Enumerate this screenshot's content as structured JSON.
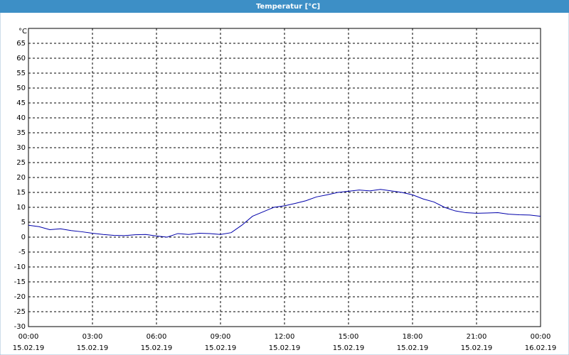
{
  "chart_data": {
    "type": "line",
    "title": "Temperatur [°C]",
    "y_label": "°C",
    "x": [
      0,
      0.5,
      1,
      1.5,
      2,
      2.5,
      3,
      3.5,
      4,
      4.5,
      5,
      5.5,
      6,
      6.5,
      7,
      7.5,
      8,
      8.5,
      9,
      9.5,
      10,
      10.5,
      11,
      11.5,
      12,
      12.5,
      13,
      13.5,
      14,
      14.5,
      15,
      15.5,
      16,
      16.5,
      17,
      17.5,
      18,
      18.5,
      19,
      19.5,
      20,
      20.5,
      21,
      21.5,
      22,
      22.5,
      23,
      23.5,
      24
    ],
    "series": [
      {
        "color": "#0000aa",
        "values": [
          4,
          3.5,
          2.5,
          2.8,
          2.2,
          1.8,
          1.3,
          0.9,
          0.6,
          0.5,
          0.8,
          0.9,
          0.4,
          0,
          1.2,
          0.9,
          1.3,
          1.2,
          0.9,
          1.5,
          4,
          7,
          8.5,
          10,
          10.5,
          11.3,
          12.2,
          13.5,
          14.2,
          15,
          15.4,
          15.8,
          15.5,
          16,
          15.5,
          15,
          14.2,
          12.8,
          11.8,
          10,
          8.8,
          8.2,
          8,
          8.1,
          8.2,
          7.7,
          7.5,
          7.4,
          7
        ]
      }
    ],
    "xlim": [
      0,
      24
    ],
    "xticks": [
      {
        "value": 0,
        "label": "00:00",
        "date": "15.02.19"
      },
      {
        "value": 3,
        "label": "03:00",
        "date": "15.02.19"
      },
      {
        "value": 6,
        "label": "06:00",
        "date": "15.02.19"
      },
      {
        "value": 9,
        "label": "09:00",
        "date": "15.02.19"
      },
      {
        "value": 12,
        "label": "12:00",
        "date": "15.02.19"
      },
      {
        "value": 15,
        "label": "15:00",
        "date": "15.02.19"
      },
      {
        "value": 18,
        "label": "18:00",
        "date": "15.02.19"
      },
      {
        "value": 21,
        "label": "21:00",
        "date": "15.02.19"
      },
      {
        "value": 24,
        "label": "00:00",
        "date": "16.02.19"
      }
    ],
    "ylim": [
      -30,
      70
    ],
    "yticks": [
      -30,
      -25,
      -20,
      -15,
      -10,
      -5,
      0,
      5,
      10,
      15,
      20,
      25,
      30,
      35,
      40,
      45,
      50,
      55,
      60,
      65
    ],
    "grid": true
  }
}
